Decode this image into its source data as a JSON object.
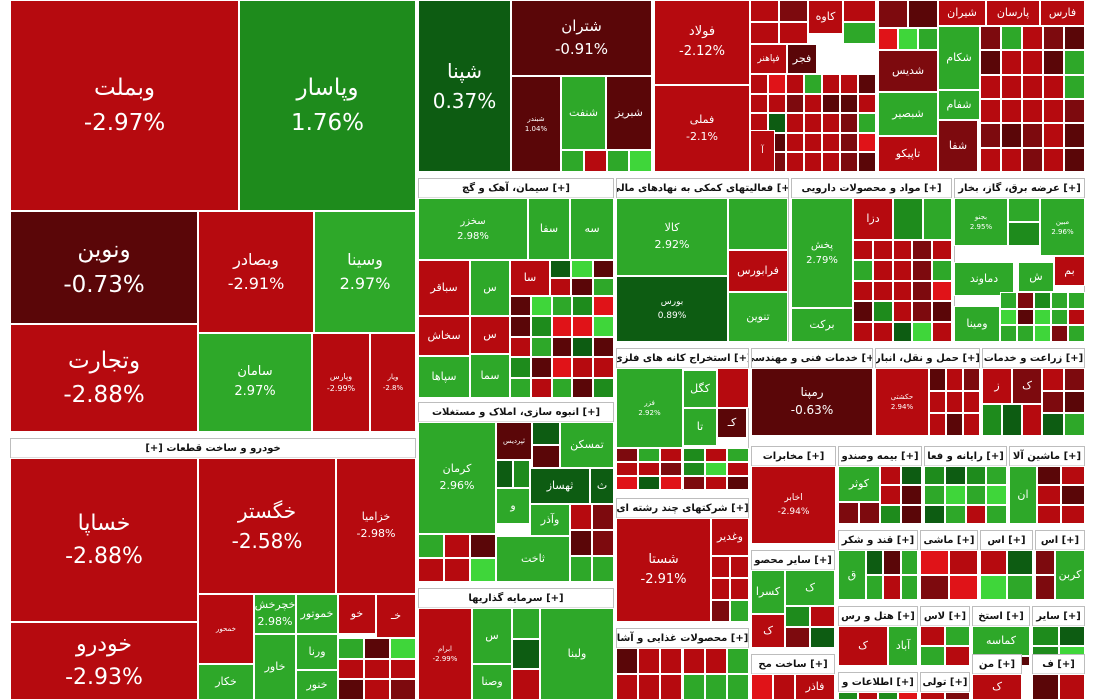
{
  "colors": {
    "red": "#b60a0f",
    "dark_red": "#5a0608",
    "maroon": "#7d0a0e",
    "green": "#2ea829",
    "dark_green": "#0d5c12",
    "mid_green": "#1e8b1c",
    "bright_green": "#3fd63a",
    "bright_red": "#e01318"
  },
  "sector_headers": [
    {
      "label": "خودرو و ساخت قطعات [+]"
    },
    {
      "label": "[+] سیمان، آهک و گچ"
    },
    {
      "label": "[+] فعالیتهای کمکی به نهادهای مالی"
    },
    {
      "label": "[+] مواد و محصولات دارویی"
    },
    {
      "label": "[+] عرضه برق، گاز، بخار"
    },
    {
      "label": "[+] استخراج کانه های فلزی"
    },
    {
      "label": "[+] خدمات فنی و مهندسی"
    },
    {
      "label": "[+] حمل و نقل، انبار"
    },
    {
      "label": "[+] زراعت و خدمات"
    },
    {
      "label": "[+] انبوه سازی، املاک و مستغلات"
    },
    {
      "label": "[+] مخابرات"
    },
    {
      "label": "[+] بیمه وصندو"
    },
    {
      "label": "[+] رایانه و فعا"
    },
    {
      "label": "[+] ماشین آلا"
    },
    {
      "label": "[+] شرکتهای چند رشته ای"
    },
    {
      "label": "[+] سایر محصو"
    },
    {
      "label": "[+] قند و شکر"
    },
    {
      "label": "[+] ماشی"
    },
    {
      "label": "[+] اس"
    },
    {
      "label": "[+] اس"
    },
    {
      "label": "[+] سرمایه گذاریها"
    },
    {
      "label": "[+] محصولات غذایی و آشا"
    },
    {
      "label": "[+] ساخت مح"
    },
    {
      "label": "[+] هتل و رس"
    },
    {
      "label": "[+] لاس"
    },
    {
      "label": "[+] استخ"
    },
    {
      "label": "[+] سایر"
    },
    {
      "label": "[+] اطلاعات و"
    },
    {
      "label": "[+] تولی"
    },
    {
      "label": "[+] من"
    },
    {
      "label": "[+] ف"
    }
  ],
  "tiles": [
    {
      "name": "وبملت",
      "pct": "-2.97%"
    },
    {
      "name": "وپاسار",
      "pct": "1.76%"
    },
    {
      "name": "ونوین",
      "pct": "-0.73%"
    },
    {
      "name": "وبصادر",
      "pct": "-2.91%"
    },
    {
      "name": "وسینا",
      "pct": "2.97%"
    },
    {
      "name": "وتجارت",
      "pct": "-2.88%"
    },
    {
      "name": "سامان",
      "pct": "2.97%"
    },
    {
      "name": "وپارس",
      "pct": "-2.99%"
    },
    {
      "name": "ویار",
      "pct": "-2.8%"
    },
    {
      "name": "شپنا",
      "pct": "0.37%"
    },
    {
      "name": "شتران",
      "pct": "-0.91%"
    },
    {
      "name": "شبندر",
      "pct": "1.04%"
    },
    {
      "name": "شنفت",
      "pct": ""
    },
    {
      "name": "شبریز",
      "pct": ""
    },
    {
      "name": "فولاد",
      "pct": "-2.12%"
    },
    {
      "name": "فملی",
      "pct": "-2.1%"
    },
    {
      "name": "کاوه",
      "pct": ""
    },
    {
      "name": "فجر",
      "pct": ""
    },
    {
      "name": "فپاهنر",
      "pct": ""
    },
    {
      "name": "شیران",
      "pct": ""
    },
    {
      "name": "پارسان",
      "pct": ""
    },
    {
      "name": "فارس",
      "pct": ""
    },
    {
      "name": "شکام",
      "pct": ""
    },
    {
      "name": "شفام",
      "pct": ""
    },
    {
      "name": "شدیس",
      "pct": ""
    },
    {
      "name": "شبصیر",
      "pct": ""
    },
    {
      "name": "تاپیکو",
      "pct": ""
    },
    {
      "name": "شفا",
      "pct": ""
    },
    {
      "name": "آ",
      "pct": ""
    },
    {
      "name": "سخزر",
      "pct": "2.98%"
    },
    {
      "name": "سفا",
      "pct": ""
    },
    {
      "name": "سه",
      "pct": ""
    },
    {
      "name": "سباقر",
      "pct": ""
    },
    {
      "name": "س",
      "pct": ""
    },
    {
      "name": "سا",
      "pct": ""
    },
    {
      "name": "سخاش",
      "pct": ""
    },
    {
      "name": "س",
      "pct": ""
    },
    {
      "name": "سپاها",
      "pct": ""
    },
    {
      "name": "سما",
      "pct": ""
    },
    {
      "name": "کالا",
      "pct": "2.92%"
    },
    {
      "name": "فرابورس",
      "pct": ""
    },
    {
      "name": "بورس",
      "pct": "0.89%"
    },
    {
      "name": "تنوین",
      "pct": ""
    },
    {
      "name": "پخش",
      "pct": "2.79%"
    },
    {
      "name": "دزا",
      "pct": ""
    },
    {
      "name": "برکت",
      "pct": ""
    },
    {
      "name": "دماوند",
      "pct": ""
    },
    {
      "name": "ومینا",
      "pct": ""
    },
    {
      "name": "بجنو",
      "pct": "2.95%"
    },
    {
      "name": "مبین",
      "pct": "2.96%"
    },
    {
      "name": "بم",
      "pct": ""
    },
    {
      "name": "ش",
      "pct": ""
    },
    {
      "name": "کگل",
      "pct": ""
    },
    {
      "name": "فزر",
      "pct": "2.92%"
    },
    {
      "name": "کـ",
      "pct": ""
    },
    {
      "name": "تا",
      "pct": ""
    },
    {
      "name": "رمپنا",
      "pct": "-0.63%"
    },
    {
      "name": "حکشتی",
      "pct": "2.94%"
    },
    {
      "name": "ز",
      "pct": ""
    },
    {
      "name": "ک",
      "pct": ""
    },
    {
      "name": "کرمان",
      "pct": "2.96%"
    },
    {
      "name": "ثپردیس",
      "pct": ""
    },
    {
      "name": "تمسکن",
      "pct": ""
    },
    {
      "name": "ث",
      "pct": ""
    },
    {
      "name": "ثهساز",
      "pct": ""
    },
    {
      "name": "و",
      "pct": ""
    },
    {
      "name": "وآذر",
      "pct": ""
    },
    {
      "name": "ثاخت",
      "pct": ""
    },
    {
      "name": "اخابر",
      "pct": "-2.94%"
    },
    {
      "name": "کوثر",
      "pct": ""
    },
    {
      "name": "ان",
      "pct": ""
    },
    {
      "name": "شستا",
      "pct": "-2.91%"
    },
    {
      "name": "وغدیر",
      "pct": ""
    },
    {
      "name": "ک",
      "pct": ""
    },
    {
      "name": "کسرا",
      "pct": ""
    },
    {
      "name": "ک",
      "pct": ""
    },
    {
      "name": "ق",
      "pct": ""
    },
    {
      "name": "کربن",
      "pct": ""
    },
    {
      "name": "ولبنا",
      "pct": ""
    },
    {
      "name": "ابرام",
      "pct": "-2.99%"
    },
    {
      "name": "س",
      "pct": ""
    },
    {
      "name": "وصنا",
      "pct": ""
    },
    {
      "name": "آباد",
      "pct": ""
    },
    {
      "name": "ک",
      "pct": ""
    },
    {
      "name": "کماسه",
      "pct": ""
    },
    {
      "name": "ک",
      "pct": ""
    },
    {
      "name": "فاذر",
      "pct": ""
    },
    {
      "name": "خساپا",
      "pct": "-2.88%"
    },
    {
      "name": "خگستر",
      "pct": "-2.58%"
    },
    {
      "name": "خزامیا",
      "pct": "-2.98%"
    },
    {
      "name": "خودرو",
      "pct": "-2.93%"
    },
    {
      "name": "خمحور",
      "pct": ""
    },
    {
      "name": "خموتور",
      "pct": ""
    },
    {
      "name": "خو",
      "pct": ""
    },
    {
      "name": "خـ",
      "pct": ""
    },
    {
      "name": "ورنا",
      "pct": ""
    },
    {
      "name": "خاور",
      "pct": ""
    },
    {
      "name": "خنور",
      "pct": ""
    },
    {
      "name": "خکار",
      "pct": ""
    },
    {
      "name": "خچرخش",
      "pct": "2.98%"
    },
    {
      "name": "خپارس",
      "pct": ""
    },
    {
      "name": "ثنو",
      "pct": ""
    }
  ]
}
